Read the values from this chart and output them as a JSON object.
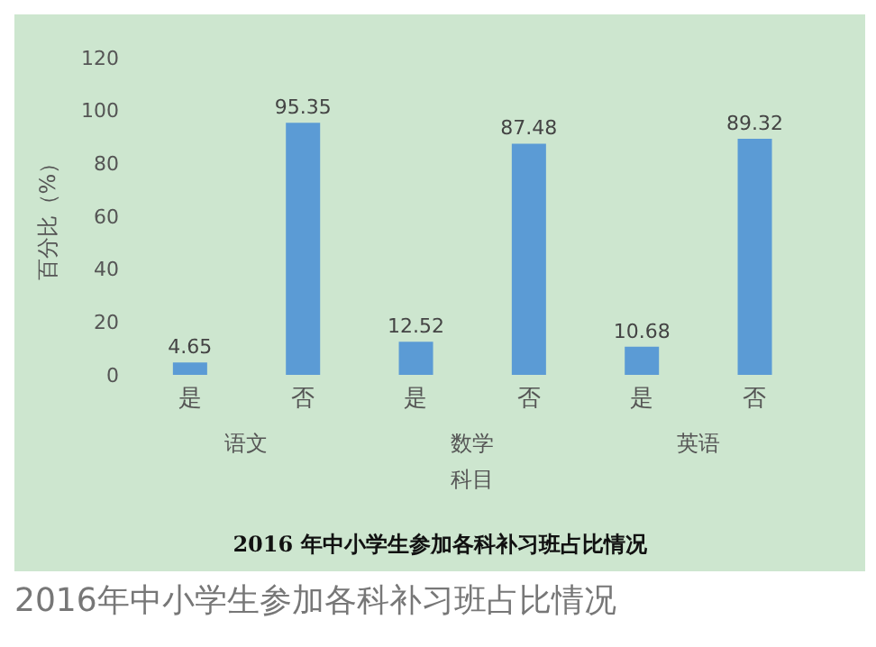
{
  "chart_data": {
    "type": "bar",
    "title": "2016 年中小学生参加各科补习班占比情况",
    "xlabel": "科目",
    "ylabel": "百分比（%）",
    "categories": [
      "是",
      "否",
      "是",
      "否",
      "是",
      "否"
    ],
    "values": [
      4.65,
      95.35,
      12.52,
      87.48,
      10.68,
      89.32
    ],
    "color": "#5b9bd5",
    "data_labels": true,
    "ylim": [
      0,
      120
    ],
    "yticks": [
      0,
      20,
      40,
      60,
      80,
      100,
      120
    ],
    "grid": false,
    "annotations": [
      "语文",
      "数学",
      "英语",
      "2016年中小学生参加各科补习班占比情况"
    ]
  }
}
